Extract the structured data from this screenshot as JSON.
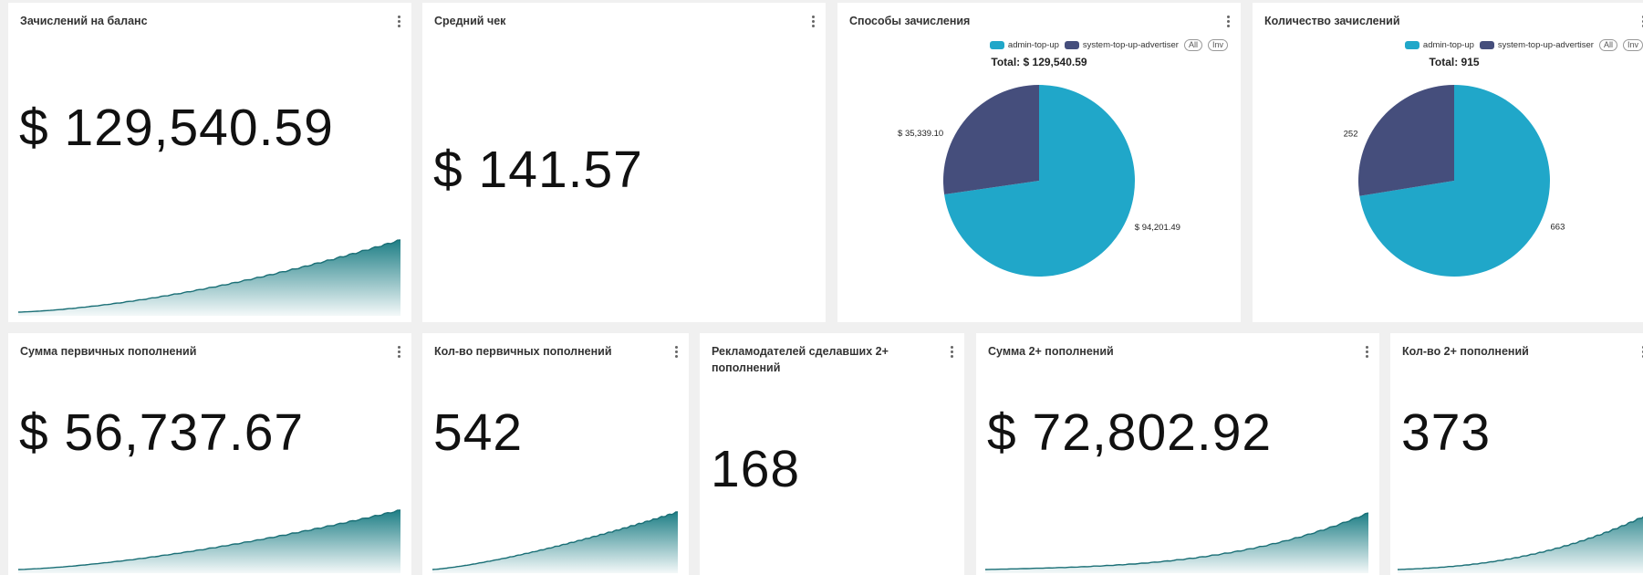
{
  "cards": [
    {
      "title": "Зачислений на баланс",
      "value": "$ 129,540.59"
    },
    {
      "title": "Средний чек",
      "value": "$ 141.57"
    },
    {
      "title": "Способы зачисления",
      "chart": {
        "type": "pie",
        "subtitle": "Total: $ 129,540.59",
        "legend_buttons": [
          "All",
          "Inv"
        ],
        "categories": [
          "admin-top-up",
          "system-top-up-advertiser"
        ],
        "values": [
          94201.49,
          35339.1
        ],
        "value_labels": [
          "$ 94,201.49",
          "$ 35,339.10"
        ],
        "colors": [
          "#20a7c9",
          "#454e7c"
        ]
      }
    },
    {
      "title": "Количество зачислений",
      "chart": {
        "type": "pie",
        "subtitle": "Total: 915",
        "legend_buttons": [
          "All",
          "Inv"
        ],
        "categories": [
          "admin-top-up",
          "system-top-up-advertiser"
        ],
        "values": [
          663,
          252
        ],
        "colors": [
          "#20a7c9",
          "#454e7c"
        ]
      }
    },
    {
      "title": "Сумма первичных пополнений",
      "value": "$ 56,737.67"
    },
    {
      "title": "Кол-во первичных пополнений",
      "value": "542"
    },
    {
      "title": "Рекламодателей сделавших 2+ пополнений",
      "value": "168"
    },
    {
      "title": "Сумма 2+ пополнений",
      "value": "$ 72,802.92"
    },
    {
      "title": "Кол-во 2+ пополнений",
      "value": "373"
    }
  ]
}
